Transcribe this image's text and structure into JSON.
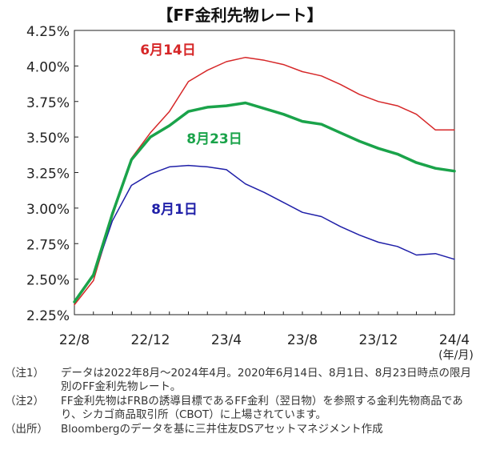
{
  "chart_data": {
    "type": "line",
    "title": "【FF金利先物レート】",
    "xlabel": "",
    "ylabel": "",
    "x_unit_label": "(年/月)",
    "xlim": [
      0,
      20
    ],
    "ylim": [
      2.25,
      4.25
    ],
    "y_ticks": [
      "4.25%",
      "4.00%",
      "3.75%",
      "3.50%",
      "3.25%",
      "3.00%",
      "2.75%",
      "2.50%",
      "2.25%"
    ],
    "y_tick_values": [
      4.25,
      4.0,
      3.75,
      3.5,
      3.25,
      3.0,
      2.75,
      2.5,
      2.25
    ],
    "x_ticks": [
      "22/8",
      "22/12",
      "23/4",
      "23/8",
      "23/12",
      "24/4"
    ],
    "x_tick_values": [
      0,
      4,
      8,
      12,
      16,
      20
    ],
    "grid": false,
    "x": [
      0,
      1,
      2,
      3,
      4,
      5,
      6,
      7,
      8,
      9,
      10,
      11,
      12,
      13,
      14,
      15,
      16,
      17,
      18,
      19,
      20
    ],
    "series": [
      {
        "name": "6月14日",
        "color": "#d62728",
        "values": [
          2.32,
          2.49,
          2.94,
          3.35,
          3.53,
          3.68,
          3.89,
          3.97,
          4.03,
          4.06,
          4.04,
          4.01,
          3.96,
          3.93,
          3.87,
          3.8,
          3.75,
          3.72,
          3.66,
          3.55,
          3.55
        ]
      },
      {
        "name": "8月1日",
        "color": "#1f1fa8",
        "values": [
          2.34,
          2.52,
          2.91,
          3.16,
          3.24,
          3.29,
          3.3,
          3.29,
          3.27,
          3.17,
          3.11,
          3.04,
          2.97,
          2.94,
          2.87,
          2.81,
          2.76,
          2.73,
          2.67,
          2.68,
          2.64
        ]
      },
      {
        "name": "8月23日",
        "color": "#1aa34a",
        "values": [
          2.34,
          2.53,
          2.96,
          3.34,
          3.5,
          3.58,
          3.68,
          3.71,
          3.72,
          3.74,
          3.7,
          3.66,
          3.61,
          3.59,
          3.53,
          3.47,
          3.42,
          3.38,
          3.32,
          3.28,
          3.26
        ]
      }
    ]
  },
  "notes": [
    {
      "label": "（注1）",
      "text": "データは2022年8月～2024年4月。2020年6月14日、8月1日、8月23日時点の限月別のFF金利先物レート。"
    },
    {
      "label": "（注2）",
      "text": "FF金利先物はFRBの誘導目標であるFF金利（翌日物）を参照する金利先物商品であり、シカゴ商品取引所（CBOT）に上場されています。"
    },
    {
      "label": "（出所）",
      "text": "Bloombergのデータを基に三井住友DSアセットマネジメント作成"
    }
  ]
}
